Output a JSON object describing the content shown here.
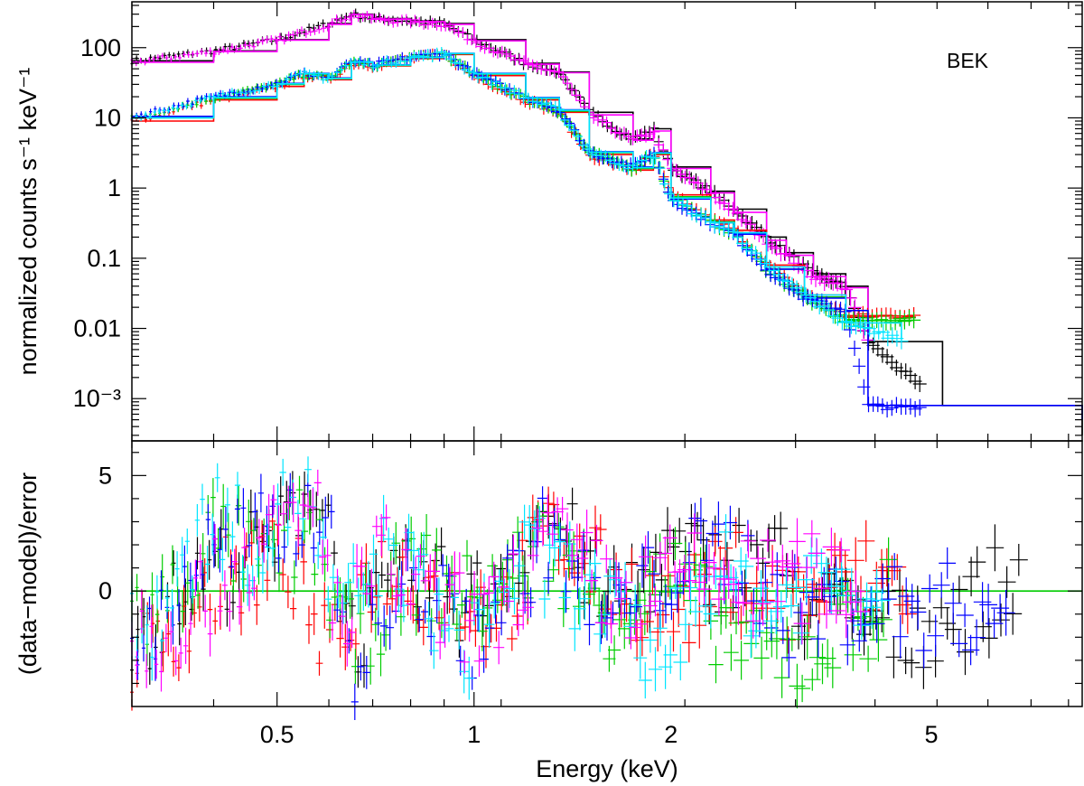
{
  "chart_data": [
    {
      "type": "scatter",
      "panel": "top",
      "scale": {
        "x": "log",
        "y": "log"
      },
      "xlim": [
        0.3,
        8.5
      ],
      "ylim": [
        0.00025,
        450
      ],
      "ylabel": "normalized counts s⁻¹ keV⁻¹",
      "annotation": "BEK",
      "yticks": [
        {
          "value": 100,
          "label": "100"
        },
        {
          "value": 10,
          "label": "10"
        },
        {
          "value": 1,
          "label": "1"
        },
        {
          "value": 0.1,
          "label": "0.1"
        },
        {
          "value": 0.01,
          "label": "0.01"
        },
        {
          "value": 0.001,
          "label": "10⁻³"
        }
      ],
      "series": [
        {
          "color": "#000000",
          "x": [
            0.3,
            0.4,
            0.5,
            0.6,
            0.65,
            0.7,
            0.8,
            0.9,
            1.0,
            1.2,
            1.35,
            1.5,
            1.75,
            1.88,
            2.0,
            2.3,
            2.5,
            2.8,
            3.0,
            3.3,
            3.7,
            4.0,
            5.2,
            8.5
          ],
          "y": [
            65,
            90,
            130,
            220,
            300,
            260,
            240,
            220,
            130,
            60,
            45,
            12,
            5,
            7,
            2,
            0.9,
            0.5,
            0.2,
            0.12,
            0.06,
            0.04,
            0.0065,
            0.0008,
            0.0003
          ]
        },
        {
          "color": "#ff00ff",
          "x": [
            0.3,
            0.4,
            0.5,
            0.6,
            0.65,
            0.7,
            0.8,
            0.9,
            1.0,
            1.2,
            1.35,
            1.5,
            1.75,
            1.88,
            2.0,
            2.3,
            2.5,
            2.8,
            3.0,
            3.3,
            3.7,
            4.0
          ],
          "y": [
            62,
            88,
            128,
            215,
            295,
            255,
            235,
            215,
            125,
            58,
            44,
            11,
            4.8,
            6.5,
            1.9,
            0.85,
            0.45,
            0.18,
            0.11,
            0.055,
            0.038,
            0.0065
          ]
        },
        {
          "color": "#ff0000",
          "x": [
            0.3,
            0.4,
            0.5,
            0.55,
            0.6,
            0.65,
            0.7,
            0.8,
            0.9,
            1.0,
            1.2,
            1.35,
            1.5,
            1.75,
            1.88,
            2.0,
            2.3,
            2.5,
            2.8,
            3.2,
            3.7,
            4.7
          ],
          "y": [
            9,
            18,
            28,
            40,
            35,
            60,
            55,
            70,
            80,
            40,
            18,
            12,
            3,
            1.8,
            3,
            0.8,
            0.35,
            0.25,
            0.08,
            0.03,
            0.015,
            0.015
          ]
        },
        {
          "color": "#00cc00",
          "x": [
            0.3,
            0.4,
            0.5,
            0.55,
            0.6,
            0.65,
            0.7,
            0.8,
            0.9,
            1.0,
            1.2,
            1.35,
            1.5,
            1.75,
            1.88,
            2.0,
            2.3,
            2.5,
            2.8,
            3.2,
            3.7,
            4.7
          ],
          "y": [
            10,
            19,
            30,
            42,
            36,
            62,
            56,
            72,
            82,
            42,
            19,
            12.5,
            3.2,
            1.9,
            3.1,
            0.75,
            0.33,
            0.23,
            0.07,
            0.028,
            0.013,
            0.013
          ]
        },
        {
          "color": "#0000ff",
          "x": [
            0.3,
            0.4,
            0.5,
            0.55,
            0.6,
            0.65,
            0.7,
            0.8,
            0.9,
            1.0,
            1.2,
            1.35,
            1.5,
            1.75,
            1.88,
            2.0,
            2.3,
            2.5,
            2.8,
            3.2,
            3.7,
            4.0,
            8.5
          ],
          "y": [
            10.5,
            20,
            31,
            43,
            37,
            63,
            57,
            73,
            83,
            43,
            19.5,
            13,
            3.3,
            2.0,
            3.2,
            0.7,
            0.32,
            0.22,
            0.07,
            0.027,
            0.018,
            0.0008,
            0.0005
          ]
        },
        {
          "color": "#00e5ff",
          "x": [
            0.3,
            0.4,
            0.5,
            0.55,
            0.6,
            0.65,
            0.7,
            0.8,
            0.9,
            1.0,
            1.2,
            1.35,
            1.5,
            1.75,
            1.88,
            2.0,
            2.3,
            2.5,
            2.8,
            3.2,
            3.7,
            4.5
          ],
          "y": [
            10,
            19.5,
            30.5,
            42.5,
            36.5,
            62.5,
            56.5,
            72.5,
            82.5,
            42.5,
            19.2,
            12.8,
            3.25,
            1.95,
            3.15,
            0.72,
            0.32,
            0.23,
            0.075,
            0.03,
            0.012,
            0.007
          ]
        }
      ]
    },
    {
      "type": "scatter",
      "panel": "bottom",
      "scale": {
        "x": "log",
        "y": "linear"
      },
      "xlim": [
        0.3,
        8.5
      ],
      "ylim": [
        -5,
        6.5
      ],
      "xlabel": "Energy (keV)",
      "ylabel": "(data−model)/error",
      "xticks": [
        {
          "value": 0.5,
          "label": "0.5"
        },
        {
          "value": 1,
          "label": "1"
        },
        {
          "value": 2,
          "label": "2"
        },
        {
          "value": 5,
          "label": "5"
        }
      ],
      "yticks": [
        {
          "value": 5,
          "label": "5"
        },
        {
          "value": 0,
          "label": "0"
        }
      ],
      "reference_line": {
        "y": 0,
        "color": "#00cc00"
      },
      "series": [
        {
          "color": "#000000",
          "x": [
            0.32,
            0.4,
            0.5,
            0.56,
            0.6,
            0.65,
            0.8,
            1.0,
            1.3,
            1.6,
            2.0,
            2.4,
            2.8,
            3.2,
            4.5,
            6.8
          ],
          "y": [
            -1.5,
            1.0,
            2.0,
            5.0,
            3.0,
            -2.0,
            0.5,
            -0.5,
            3.5,
            -0.5,
            1.5,
            1.0,
            2.0,
            -0.5,
            -1.8,
            0.3
          ]
        },
        {
          "color": "#ff0000",
          "x": [
            0.32,
            0.42,
            0.52,
            0.6,
            0.7,
            0.9,
            1.1,
            1.3,
            1.6,
            2.0,
            2.5,
            3.0,
            3.8,
            4.6
          ],
          "y": [
            -2.5,
            0.5,
            1.5,
            -3.0,
            1.0,
            0.0,
            -1.0,
            2.5,
            0.5,
            -1.0,
            0.8,
            -0.5,
            0.5,
            0.4
          ]
        },
        {
          "color": "#00cc00",
          "x": [
            0.33,
            0.4,
            0.48,
            0.56,
            0.65,
            0.8,
            1.0,
            1.3,
            1.6,
            2.0,
            2.7,
            3.1,
            4.3
          ],
          "y": [
            -1.0,
            2.5,
            1.0,
            3.0,
            -2.5,
            1.0,
            -0.5,
            2.0,
            -1.0,
            0.5,
            -2.8,
            -3.0,
            -0.4
          ]
        },
        {
          "color": "#0000ff",
          "x": [
            0.3,
            0.38,
            0.5,
            0.58,
            0.66,
            0.8,
            1.0,
            1.3,
            1.6,
            2.0,
            2.5,
            3.0,
            3.6,
            6.5
          ],
          "y": [
            -3.0,
            1.5,
            2.5,
            4.0,
            -3.5,
            0.5,
            -2.0,
            2.5,
            -1.5,
            1.0,
            1.8,
            -1.0,
            -0.5,
            -0.8
          ]
        },
        {
          "color": "#00e5ff",
          "x": [
            0.31,
            0.4,
            0.46,
            0.55,
            0.62,
            0.75,
            0.95,
            1.2,
            1.5,
            1.9,
            2.3,
            2.9,
            3.3,
            4.2
          ],
          "y": [
            -2.0,
            3.5,
            2.0,
            4.5,
            -1.5,
            2.0,
            -2.5,
            1.5,
            0.0,
            -3.0,
            1.0,
            -0.8,
            0.6,
            0.1
          ]
        },
        {
          "color": "#ff00ff",
          "x": [
            0.33,
            0.44,
            0.53,
            0.58,
            0.63,
            0.72,
            0.88,
            1.05,
            1.3,
            1.7,
            2.1,
            2.6,
            3.4,
            3.9
          ],
          "y": [
            -1.8,
            1.2,
            2.8,
            3.5,
            -2.0,
            1.5,
            -0.8,
            -1.5,
            2.2,
            -0.6,
            0.8,
            0.3,
            0.6,
            0.3
          ]
        }
      ]
    }
  ]
}
